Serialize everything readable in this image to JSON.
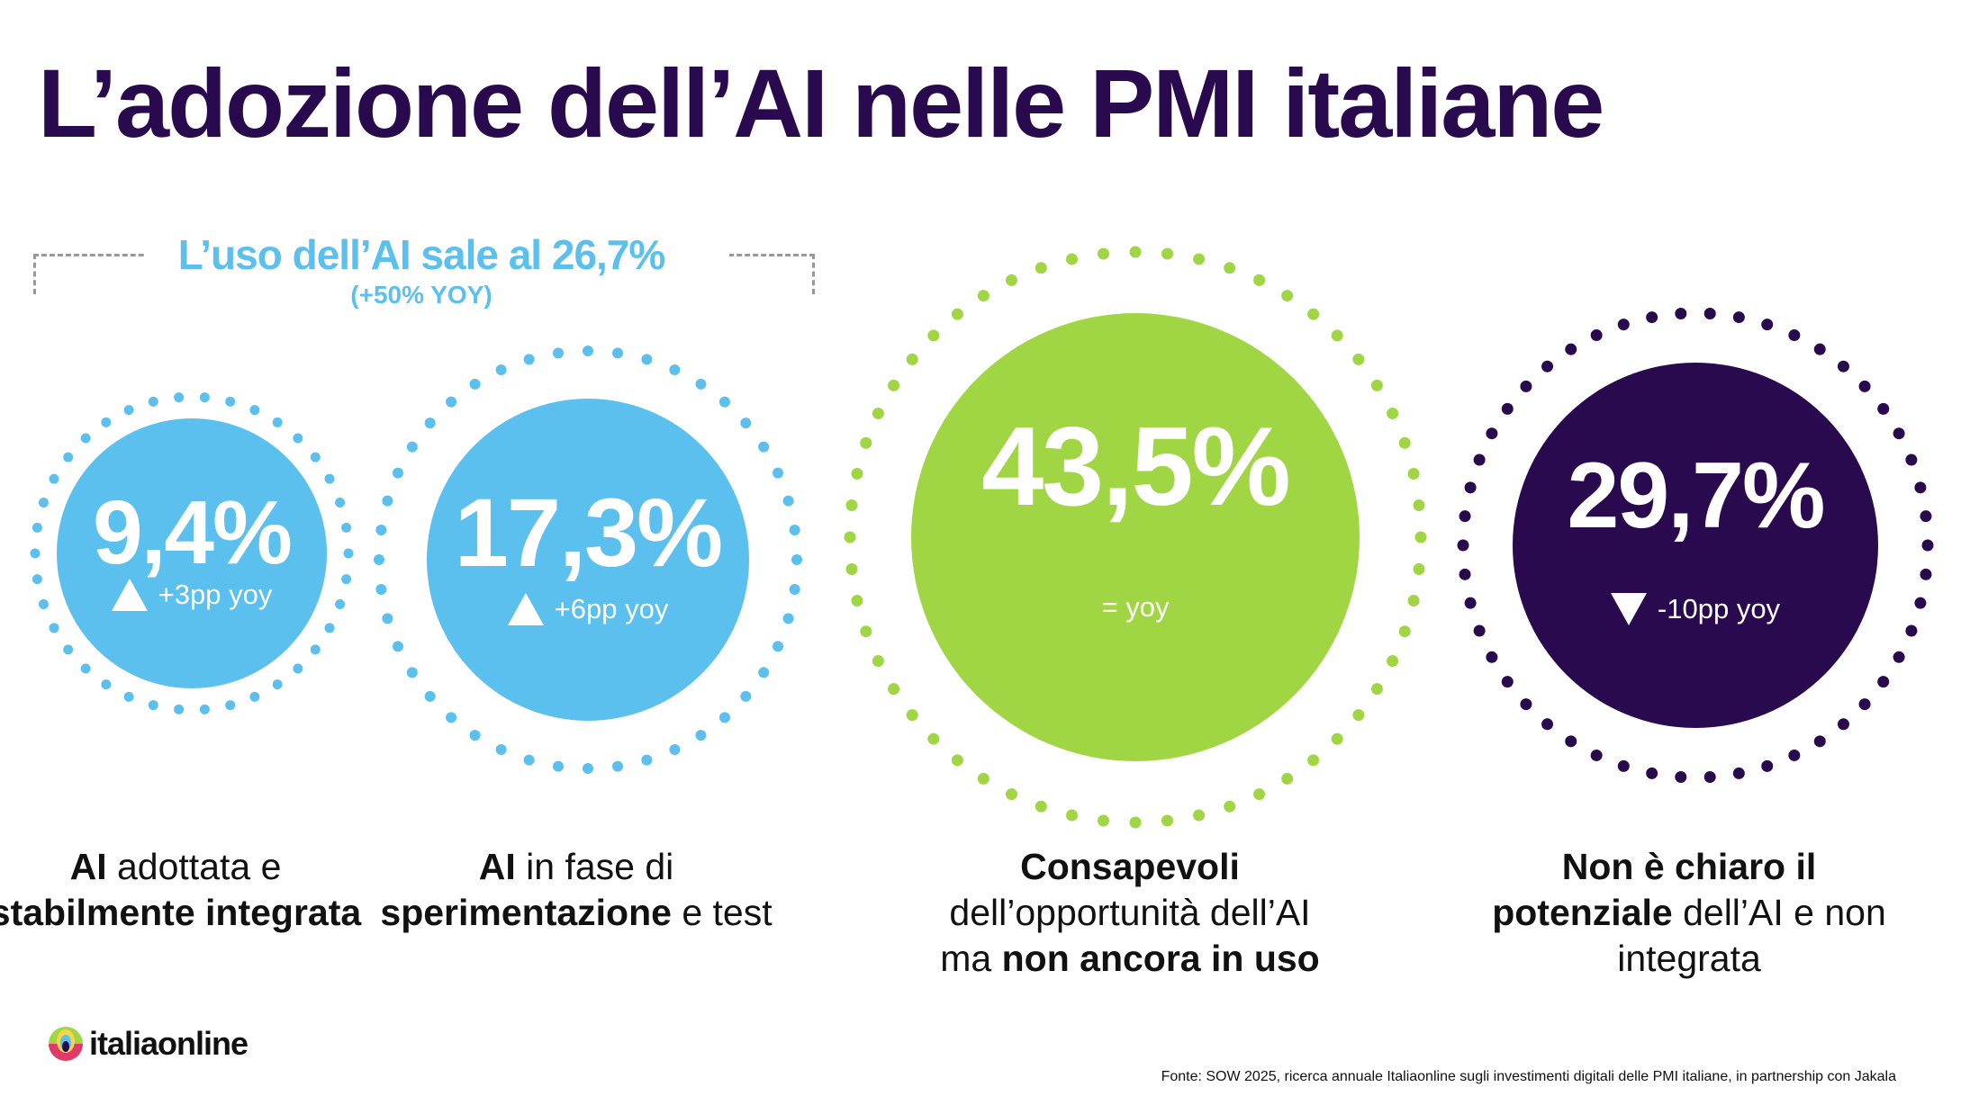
{
  "title": "L’adozione dell’AI nelle PMI italiane",
  "summary": {
    "headline": "L’uso dell’AI sale al 26,7%",
    "sub": "(+50% YOY)"
  },
  "colors": {
    "blue": "#5bc0ee",
    "green": "#a0d643",
    "purple": "#2a0a4f"
  },
  "stats": [
    {
      "value": "9,4%",
      "change": "+3pp yoy",
      "trend": "up",
      "color": "#5bc0ee",
      "label": [
        {
          "t": "AI",
          "b": true
        },
        {
          "t": " adottata e ",
          "b": false
        },
        {
          "t": "stabilmente integrata",
          "b": true
        }
      ]
    },
    {
      "value": "17,3%",
      "change": "+6pp yoy",
      "trend": "up",
      "color": "#5bc0ee",
      "label": [
        {
          "t": "AI",
          "b": true
        },
        {
          "t": " in fase di ",
          "b": false
        },
        {
          "t": "sperimentazione",
          "b": true
        },
        {
          "t": " e test",
          "b": false
        }
      ]
    },
    {
      "value": "43,5%",
      "change": "= yoy",
      "trend": "flat",
      "color": "#a0d643",
      "label": [
        {
          "t": "Consapevoli",
          "b": true
        },
        {
          "t": " dell’opportunità dell’AI ma ",
          "b": false
        },
        {
          "t": "non ancora in uso",
          "b": true
        }
      ]
    },
    {
      "value": "29,7%",
      "change": "-10pp yoy",
      "trend": "down",
      "color": "#2a0a4f",
      "label": [
        {
          "t": "Non è chiaro il potenziale",
          "b": true
        },
        {
          "t": " dell’AI e non integrata",
          "b": false
        }
      ]
    }
  ],
  "logo": {
    "text": "italiaonline"
  },
  "footer": "Fonte: SOW 2025, ricerca annuale Italiaonline sugli investimenti digitali delle PMI italiane, in partnership con Jakala"
}
